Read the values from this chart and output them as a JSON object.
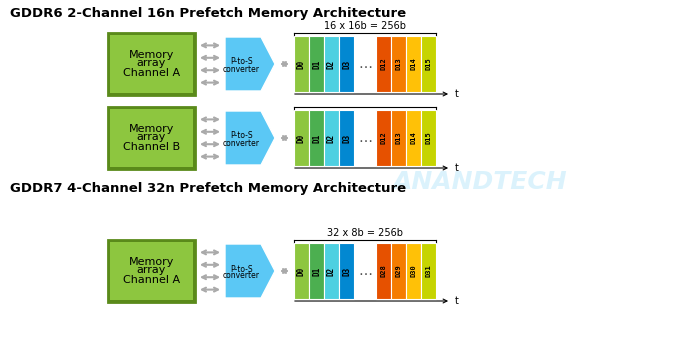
{
  "title1": "GDDR6 2-Channel 16n Prefetch Memory Architecture",
  "title2": "GDDR7 4-Channel 32n Prefetch Memory Architecture",
  "watermark": "ANANDTECH",
  "bg_color": "#ffffff",
  "title_fontsize": 9.5,
  "green_box_color": "#8DC63F",
  "green_box_dark": "#5A8A1A",
  "blue_arrow_color": "#5BC8F5",
  "gray_color": "#AAAAAA",
  "d_colors": {
    "D0": "#8DC63F",
    "D1": "#4CAF50",
    "D2": "#4DD0E1",
    "D3": "#0288D1",
    "D12": "#E65100",
    "D13": "#F57C00",
    "D14": "#FFC107",
    "D15": "#C6D400",
    "D28": "#E65100",
    "D29": "#F57C00",
    "D30": "#FFC107",
    "D31": "#C6D400"
  }
}
